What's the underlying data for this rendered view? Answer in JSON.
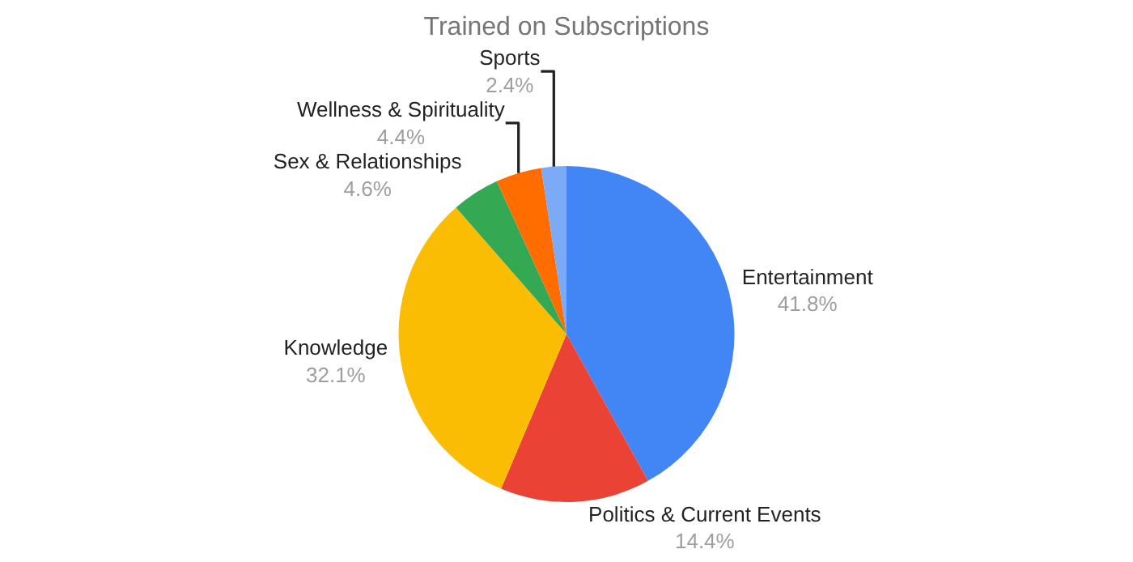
{
  "chart_data": {
    "type": "pie",
    "title": "Trained on Subscriptions",
    "categories": [
      "Entertainment",
      "Politics & Current Events",
      "Knowledge",
      "Sex & Relationships",
      "Wellness & Spirituality",
      "Sports"
    ],
    "values": [
      41.8,
      14.4,
      32.1,
      4.6,
      4.4,
      2.4
    ],
    "value_labels": [
      "41.8%",
      "14.4%",
      "32.1%",
      "4.6%",
      "4.4%",
      "2.4%"
    ],
    "colors": [
      "#4285f4",
      "#ea4335",
      "#fbbc04",
      "#34a853",
      "#ff6d01",
      "#7baaf7"
    ],
    "legend": false
  }
}
